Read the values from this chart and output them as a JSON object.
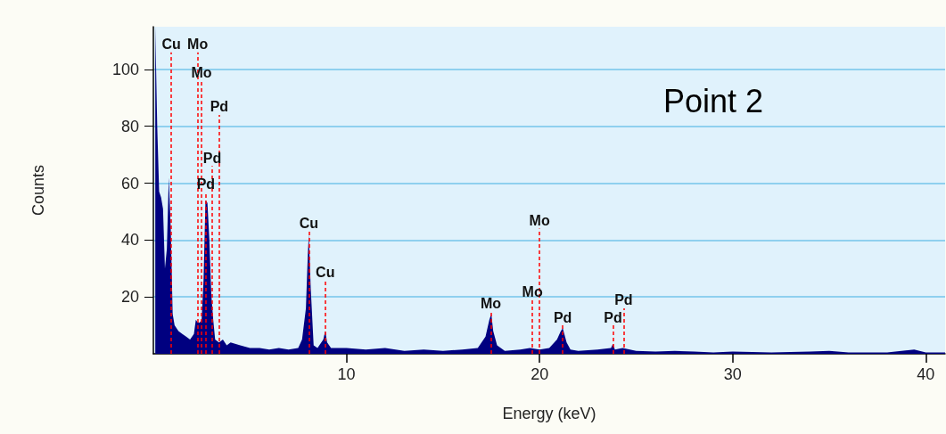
{
  "chart_data": {
    "type": "area",
    "xlabel": "Energy (keV)",
    "ylabel": "Counts",
    "xlim": [
      0,
      41
    ],
    "ylim": [
      0,
      115
    ],
    "xticks": [
      10,
      20,
      30,
      40
    ],
    "yticks": [
      20,
      40,
      60,
      80,
      100
    ],
    "grid": "y",
    "series": [
      {
        "color": "#000080",
        "x": [
          0.1,
          0.2,
          0.3,
          0.4,
          0.5,
          0.6,
          0.7,
          0.8,
          0.9,
          1.0,
          1.1,
          1.3,
          1.5,
          1.7,
          1.9,
          2.1,
          2.2,
          2.3,
          2.4,
          2.5,
          2.6,
          2.7,
          2.8,
          2.9,
          3.0,
          3.1,
          3.2,
          3.4,
          3.6,
          3.8,
          4.0,
          4.5,
          5,
          5.5,
          6,
          6.5,
          7,
          7.5,
          7.7,
          7.9,
          8.0,
          8.05,
          8.15,
          8.3,
          8.5,
          8.8,
          8.9,
          9.0,
          9.2,
          10,
          11,
          12,
          13,
          14,
          15,
          16,
          16.8,
          17.2,
          17.4,
          17.5,
          17.6,
          17.8,
          18.2,
          19,
          19.5,
          20,
          20.5,
          20.9,
          21.1,
          21.2,
          21.4,
          21.6,
          22,
          23,
          23.7,
          23.8,
          23.9,
          24.3,
          25,
          26,
          27,
          28,
          29,
          30,
          32,
          34,
          35,
          36,
          38,
          39.4,
          40,
          41
        ],
        "values": [
          115,
          80,
          57,
          55,
          51,
          30,
          37,
          62,
          44,
          14,
          10,
          8,
          7,
          6,
          5,
          7,
          12,
          11,
          11,
          12,
          26,
          54,
          53,
          40,
          21,
          12,
          5,
          4,
          5,
          3,
          4,
          3,
          2,
          2,
          1.5,
          2,
          1.5,
          2,
          5,
          16,
          35,
          42,
          23,
          3,
          2,
          5,
          8,
          4,
          2,
          2,
          1.5,
          2,
          1,
          1.5,
          1,
          1.5,
          2,
          6,
          12,
          14,
          8,
          3,
          1,
          1.5,
          2,
          1.5,
          2,
          5,
          8,
          9,
          4,
          1.5,
          1,
          1.5,
          2,
          3.5,
          1.5,
          2,
          1,
          0.8,
          1,
          0.8,
          0.5,
          0.8,
          0.5,
          0.8,
          1,
          0.5,
          0.5,
          1.5,
          0.5,
          0.5
        ]
      }
    ],
    "ref_lines": [
      {
        "axis": "x",
        "value": 0.93,
        "color": "#ff0000",
        "line_style": "dashed"
      },
      {
        "axis": "x",
        "value": 2.29,
        "color": "#ff0000",
        "line_style": "dashed"
      },
      {
        "axis": "x",
        "value": 2.49,
        "color": "#ff0000",
        "line_style": "dashed"
      },
      {
        "axis": "x",
        "value": 2.72,
        "color": "#ff0000",
        "line_style": "dashed"
      },
      {
        "axis": "x",
        "value": 3.05,
        "color": "#ff0000",
        "line_style": "dashed"
      },
      {
        "axis": "x",
        "value": 3.41,
        "color": "#ff0000",
        "line_style": "dashed"
      },
      {
        "axis": "x",
        "value": 8.05,
        "color": "#ff0000",
        "line_style": "dashed"
      },
      {
        "axis": "x",
        "value": 8.9,
        "color": "#ff0000",
        "line_style": "dashed"
      },
      {
        "axis": "x",
        "value": 17.48,
        "color": "#ff0000",
        "line_style": "dashed"
      },
      {
        "axis": "x",
        "value": 19.63,
        "color": "#ff0000",
        "line_style": "dashed"
      },
      {
        "axis": "x",
        "value": 20.0,
        "color": "#ff0000",
        "line_style": "dashed"
      },
      {
        "axis": "x",
        "value": 21.2,
        "color": "#ff0000",
        "line_style": "dashed"
      },
      {
        "axis": "x",
        "value": 23.8,
        "color": "#ff0000",
        "line_style": "dashed"
      },
      {
        "axis": "x",
        "value": 24.35,
        "color": "#ff0000",
        "line_style": "dashed"
      }
    ],
    "annotations": [
      {
        "text": "Cu",
        "x": 0.93,
        "y": 106
      },
      {
        "text": "Mo",
        "x": 2.29,
        "y": 106
      },
      {
        "text": "Mo",
        "x": 2.49,
        "y": 96
      },
      {
        "text": "Pd",
        "x": 2.72,
        "y": 57
      },
      {
        "text": "Pd",
        "x": 3.05,
        "y": 66
      },
      {
        "text": "Pd",
        "x": 3.41,
        "y": 84
      },
      {
        "text": "Cu",
        "x": 8.05,
        "y": 43
      },
      {
        "text": "Cu",
        "x": 8.9,
        "y": 26
      },
      {
        "text": "Mo",
        "x": 17.48,
        "y": 15
      },
      {
        "text": "Mo",
        "x": 19.63,
        "y": 19
      },
      {
        "text": "Mo",
        "x": 20.0,
        "y": 44
      },
      {
        "text": "Pd",
        "x": 21.2,
        "y": 10
      },
      {
        "text": "Pd",
        "x": 23.8,
        "y": 10
      },
      {
        "text": "Pd",
        "x": 24.35,
        "y": 16
      },
      "Point 2"
    ]
  }
}
